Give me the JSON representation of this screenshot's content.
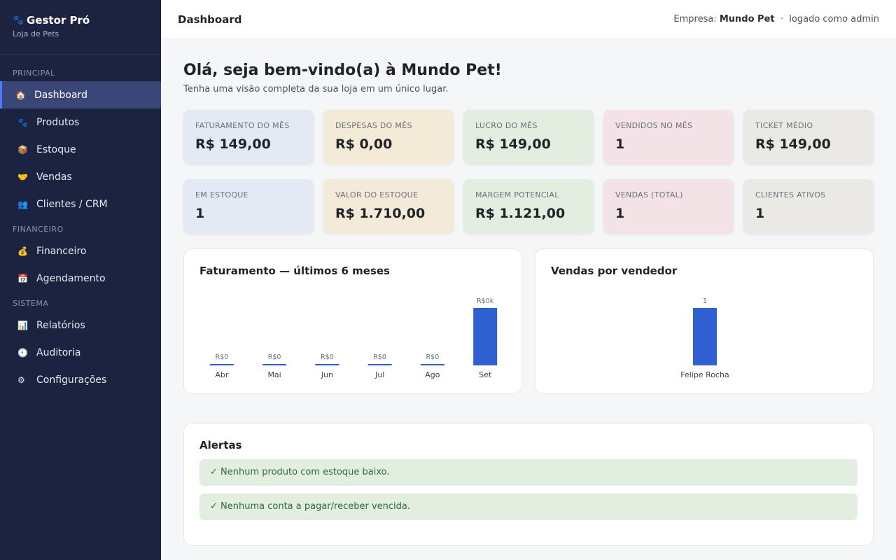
{
  "brand": {
    "name": "Gestor Pró",
    "subtitle": "Loja de Pets"
  },
  "sidebar": {
    "sections": [
      "PRINCIPAL",
      "FINANCEIRO",
      "SISTEMA"
    ],
    "items": [
      {
        "label": "Dashboard",
        "icon": "home-icon",
        "active": true
      },
      {
        "label": "Produtos",
        "icon": "paw-icon"
      },
      {
        "label": "Estoque",
        "icon": "box-icon"
      },
      {
        "label": "Vendas",
        "icon": "handshake-icon"
      },
      {
        "label": "Clientes / CRM",
        "icon": "users-icon"
      },
      {
        "label": "Financeiro",
        "icon": "money-bag-icon"
      },
      {
        "label": "Agendamento",
        "icon": "calendar-icon"
      },
      {
        "label": "Relatórios",
        "icon": "bar-chart-icon"
      },
      {
        "label": "Auditoria",
        "icon": "clock-icon"
      },
      {
        "label": "Configurações",
        "icon": "gear-icon"
      }
    ]
  },
  "header": {
    "title": "Dashboard",
    "company_label": "Empresa:",
    "company": "Mundo Pet",
    "separator": "·",
    "logged_as": "logado como admin"
  },
  "welcome": {
    "title": "Olá, seja bem-vindo(a) à Mundo Pet!",
    "subtitle": "Tenha uma visão completa da sua loja em um único lugar."
  },
  "kpis": [
    {
      "label": "FATURAMENTO DO MÊS",
      "value": "R$ 149,00",
      "color": "#e3eaf4"
    },
    {
      "label": "DESPESAS DO MÊS",
      "value": "R$ 0,00",
      "color": "#f4ead8"
    },
    {
      "label": "LUCRO DO MÊS",
      "value": "R$ 149,00",
      "color": "#e3ede0"
    },
    {
      "label": "VENDIDOS NO MÊS",
      "value": "1",
      "color": "#f4e3e6"
    },
    {
      "label": "TICKET MÉDIO",
      "value": "R$ 149,00",
      "color": "#ebe9e6"
    },
    {
      "label": "EM ESTOQUE",
      "value": "1",
      "color": "#e3eaf4"
    },
    {
      "label": "VALOR DO ESTOQUE",
      "value": "R$ 1.710,00",
      "color": "#f4ead8"
    },
    {
      "label": "MARGEM POTENCIAL",
      "value": "R$ 1.121,00",
      "color": "#e3ede0"
    },
    {
      "label": "VENDAS (TOTAL)",
      "value": "1",
      "color": "#f4e3e6"
    },
    {
      "label": "CLIENTES ATIVOS",
      "value": "1",
      "color": "#ebe9e6"
    }
  ],
  "charts": {
    "revenue_title": "Faturamento — últimos 6 meses",
    "sellers_title": "Vendas por vendedor"
  },
  "chart_data": [
    {
      "type": "bar",
      "title": "Faturamento — últimos 6 meses",
      "categories": [
        "Abr",
        "Mai",
        "Jun",
        "Jul",
        "Ago",
        "Set"
      ],
      "values": [
        0,
        0,
        0,
        0,
        0,
        149
      ],
      "data_labels": [
        "R$0",
        "R$0",
        "R$0",
        "R$0",
        "R$0",
        "R$0k"
      ],
      "color": "#2f5fd0"
    },
    {
      "type": "bar",
      "title": "Vendas por vendedor",
      "categories": [
        "Felipe Rocha"
      ],
      "values": [
        1
      ],
      "data_labels": [
        "1"
      ],
      "color": "#2f5fd0"
    }
  ],
  "alerts": {
    "title": "Alertas",
    "items": [
      "✓ Nenhum produto com estoque baixo.",
      "✓ Nenhuma conta a pagar/receber vencida."
    ]
  },
  "colors": {
    "sidebar_bg": "#1c2340",
    "accent": "#4b7bff",
    "bar": "#2f5fd0",
    "alert_bg": "#e2eee0",
    "alert_text": "#2e6b3f"
  }
}
